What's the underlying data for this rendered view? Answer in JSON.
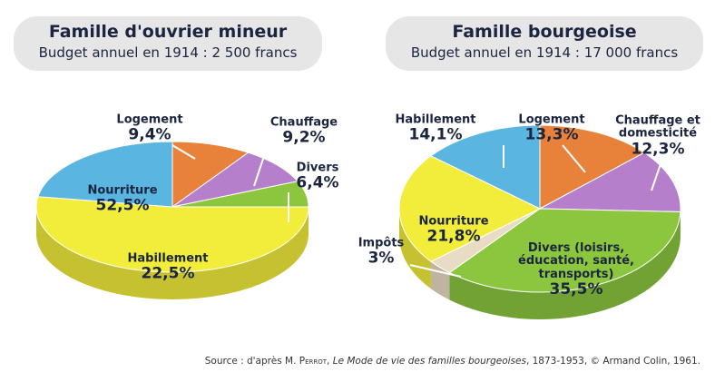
{
  "chart_data": [
    {
      "type": "pie",
      "title": "Famille d'ouvrier mineur",
      "subtitle": "Budget annuel en 1914 : 2 500 francs",
      "categories": [
        "Logement",
        "Chauffage",
        "Divers",
        "Nourriture",
        "Habillement"
      ],
      "values": [
        9.4,
        9.2,
        6.4,
        52.5,
        22.5
      ],
      "value_labels": [
        "9,4%",
        "9,2%",
        "6,4%",
        "52,5%",
        "22,5%"
      ],
      "colors": [
        "#e8823a",
        "#b57fcb",
        "#8cc63f",
        "#f2ec3b",
        "#5ab6e0"
      ]
    },
    {
      "type": "pie",
      "title": "Famille bourgeoise",
      "subtitle": "Budget annuel en 1914 : 17 000 francs",
      "categories": [
        "Logement",
        "Chauffage et domesticité",
        "Divers (loisirs, éducation, santé, transports)",
        "Impôts",
        "Nourriture",
        "Habillement"
      ],
      "values": [
        13.3,
        12.3,
        35.5,
        3,
        21.8,
        14.1
      ],
      "value_labels": [
        "13,3%",
        "12,3%",
        "35,5%",
        "3%",
        "21,8%",
        "14,1%"
      ],
      "colors": [
        "#e8823a",
        "#b57fcb",
        "#8cc63f",
        "#e9dcc4",
        "#f2ec3b",
        "#5ab6e0"
      ]
    }
  ],
  "source": [
    "Source : d'après M. ",
    "Perrot",
    ", ",
    "Le Mode de vie des familles bourgeoises",
    ", 1873-1953, © Armand Colin, 1961."
  ]
}
